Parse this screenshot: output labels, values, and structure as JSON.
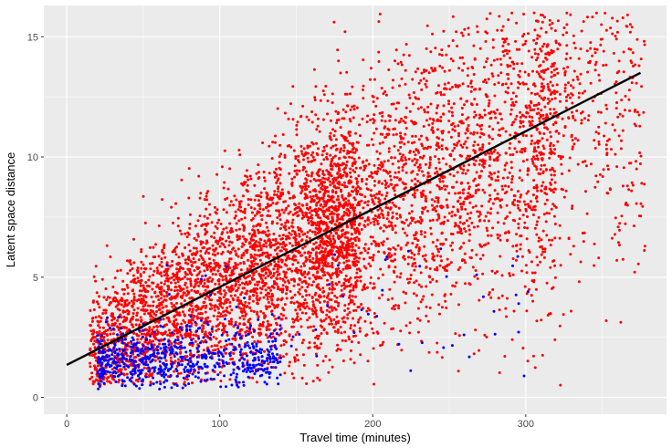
{
  "chart_data": {
    "type": "scatter",
    "title": "",
    "xlabel": "Travel time (minutes)",
    "ylabel": "Latent space distance",
    "xlim": [
      -15,
      392
    ],
    "ylim": [
      -0.7,
      16.3
    ],
    "x_ticks": [
      0,
      100,
      200,
      300
    ],
    "y_ticks": [
      0,
      5,
      10,
      15
    ],
    "x_tick_labels": [
      "0",
      "100",
      "200",
      "300"
    ],
    "y_tick_labels": [
      "0",
      "5",
      "10",
      "15"
    ],
    "grid": true,
    "legend": "none",
    "panel_background": "#ebebeb",
    "grid_color": "#ffffff",
    "series": [
      {
        "color": "#ff0000",
        "approx_points": 6200,
        "trend": "y ≈ 1.35 + 0.0325·x, spread widening with x",
        "x_range": [
          2,
          378
        ],
        "y_range": [
          0.5,
          16
        ]
      },
      {
        "color": "#0000ff",
        "approx_points": 700,
        "trend": "concentrated at x 20–140, y 0.2–3.5, sparse beyond",
        "x_range": [
          10,
          305
        ],
        "y_range": [
          0.2,
          6.5
        ]
      }
    ],
    "fit_line": {
      "color": "#000000",
      "x": [
        0,
        375
      ],
      "y": [
        1.35,
        13.5
      ]
    }
  }
}
